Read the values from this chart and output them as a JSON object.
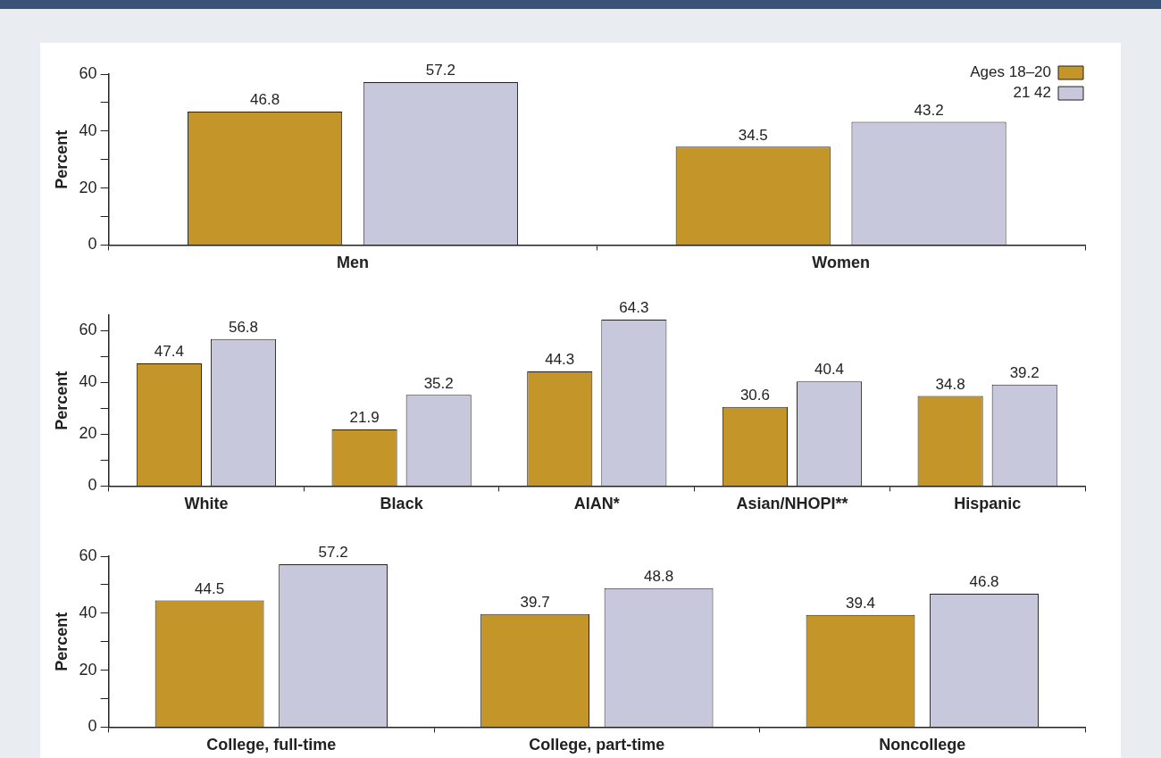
{
  "chart_data": [
    {
      "type": "bar",
      "ylabel": "Percent",
      "categories": [
        "Men",
        "Women"
      ],
      "series": [
        {
          "name": "Ages 18–20",
          "color": "#c4962a",
          "values": [
            46.8,
            34.5
          ]
        },
        {
          "name": "21 42",
          "color": "#c8c8dc",
          "values": [
            57.2,
            43.2
          ]
        }
      ],
      "ylim": [
        0,
        60
      ],
      "yticks": [
        0,
        {
          "value": 10,
          "label": null
        },
        20,
        {
          "value": 30,
          "label": null
        },
        40,
        {
          "value": 50,
          "label": null
        },
        60
      ],
      "grid": false,
      "legend": "top right",
      "data_labels": true
    },
    {
      "type": "bar",
      "ylabel": "Percent",
      "categories": [
        "White",
        "Black",
        "AIAN*",
        "Asian/NHOPI**",
        "Hispanic"
      ],
      "series": [
        {
          "color": "#c4962a",
          "values": [
            47.4,
            21.9,
            44.3,
            30.6,
            34.8
          ]
        },
        {
          "color": "#c8c8dc",
          "values": [
            56.8,
            35.2,
            64.3,
            40.4,
            39.2
          ]
        }
      ],
      "ylim": [
        0,
        66
      ],
      "yticks": [
        0,
        {
          "value": 10,
          "label": null
        },
        20,
        {
          "value": 30,
          "label": null
        },
        40,
        {
          "value": 50,
          "label": null
        },
        60
      ],
      "grid": false,
      "data_labels": true
    },
    {
      "type": "bar",
      "ylabel": "Percent",
      "categories": [
        "College, full-time",
        "College, part-time",
        "Noncollege"
      ],
      "series": [
        {
          "color": "#c4962a",
          "values": [
            44.5,
            39.7,
            39.4
          ]
        },
        {
          "color": "#c8c8dc",
          "values": [
            57.2,
            48.8,
            46.8
          ]
        }
      ],
      "ylim": [
        0,
        60
      ],
      "yticks": [
        0,
        {
          "value": 10,
          "label": null
        },
        20,
        {
          "value": 30,
          "label": null
        },
        40,
        {
          "value": 50,
          "label": null
        },
        60
      ],
      "grid": false,
      "data_labels": true
    }
  ]
}
